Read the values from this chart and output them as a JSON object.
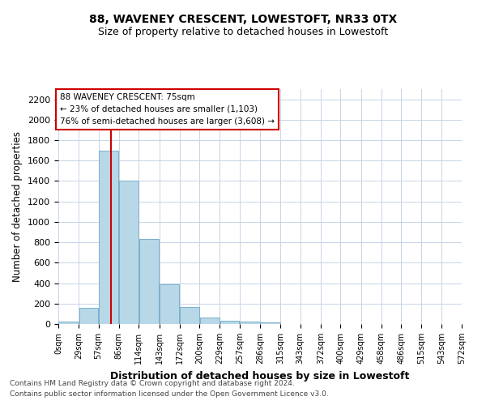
{
  "title1": "88, WAVENEY CRESCENT, LOWESTOFT, NR33 0TX",
  "title2": "Size of property relative to detached houses in Lowestoft",
  "xlabel": "Distribution of detached houses by size in Lowestoft",
  "ylabel": "Number of detached properties",
  "bar_values": [
    20,
    155,
    1700,
    1400,
    830,
    385,
    165,
    65,
    30,
    25,
    15,
    0,
    0,
    0,
    0,
    0,
    0,
    0,
    0,
    0
  ],
  "bin_edges": [
    0,
    29,
    57,
    86,
    114,
    143,
    172,
    200,
    229,
    257,
    286,
    315,
    343,
    372,
    400,
    429,
    458,
    486,
    515,
    543,
    572
  ],
  "tick_labels": [
    "0sqm",
    "29sqm",
    "57sqm",
    "86sqm",
    "114sqm",
    "143sqm",
    "172sqm",
    "200sqm",
    "229sqm",
    "257sqm",
    "286sqm",
    "315sqm",
    "343sqm",
    "372sqm",
    "400sqm",
    "429sqm",
    "458sqm",
    "486sqm",
    "515sqm",
    "543sqm",
    "572sqm"
  ],
  "bar_color": "#b8d8e8",
  "bar_edge_color": "#7ab0cc",
  "vline_x": 75,
  "vline_color": "#cc0000",
  "ylim": [
    0,
    2300
  ],
  "yticks": [
    0,
    200,
    400,
    600,
    800,
    1000,
    1200,
    1400,
    1600,
    1800,
    2000,
    2200
  ],
  "annotation_title": "88 WAVENEY CRESCENT: 75sqm",
  "annotation_line1": "← 23% of detached houses are smaller (1,103)",
  "annotation_line2": "76% of semi-detached houses are larger (3,608) →",
  "annotation_box_color": "#ffffff",
  "annotation_box_edge": "#cc0000",
  "footer1": "Contains HM Land Registry data © Crown copyright and database right 2024.",
  "footer2": "Contains public sector information licensed under the Open Government Licence v3.0.",
  "background_color": "#ffffff",
  "grid_color": "#c8d4e8"
}
